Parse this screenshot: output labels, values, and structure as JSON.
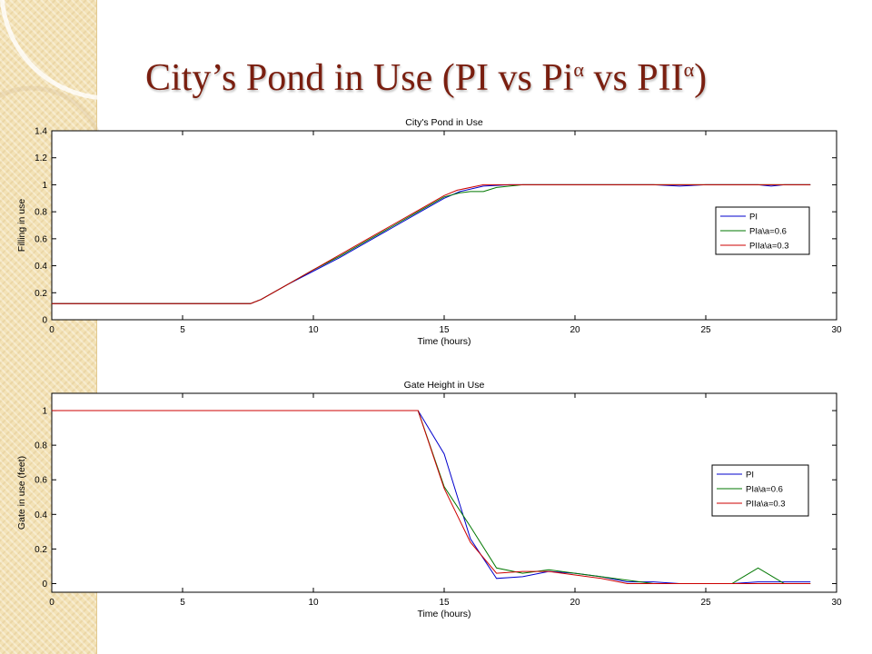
{
  "slide": {
    "title_main": "City’s Pond in Use (PI vs Pi",
    "title_sup1": "α",
    "title_mid": " vs PII",
    "title_sup2": "α",
    "title_end": ")"
  },
  "colors": {
    "title": "#7a1f10",
    "band": "#f3e2b6",
    "PI": "#0000cc",
    "PIa06": "#007700",
    "PIIa03": "#cc0000"
  },
  "chart_data": [
    {
      "type": "line",
      "title": "City's Pond in Use",
      "xlabel": "Time (hours)",
      "ylabel": "Filling in use",
      "xlim": [
        0,
        30
      ],
      "ylim": [
        0,
        1.4
      ],
      "xticks": [
        0,
        5,
        10,
        15,
        20,
        25,
        30
      ],
      "yticks": [
        0,
        0.2,
        0.4,
        0.6,
        0.8,
        1,
        1.2,
        1.4
      ],
      "ytick_labels": [
        "0",
        "0.2",
        "0.4",
        "0.6",
        "0.8",
        "1",
        "1.2",
        "1.4"
      ],
      "grid": false,
      "legend": "right",
      "series": [
        {
          "name": "PI",
          "color": "#0000cc",
          "x": [
            0,
            7.6,
            8,
            9,
            10,
            11,
            12,
            13,
            14,
            15,
            15.6,
            16.5,
            17.5,
            18,
            20,
            22,
            23,
            24,
            25,
            27,
            27.5,
            28,
            29
          ],
          "y": [
            0.12,
            0.12,
            0.15,
            0.26,
            0.36,
            0.46,
            0.57,
            0.68,
            0.79,
            0.9,
            0.95,
            0.99,
            1.0,
            1.0,
            1.0,
            1.0,
            1.0,
            0.99,
            1.0,
            1.0,
            0.99,
            1.0,
            1.0
          ]
        },
        {
          "name": "PIa\\a=0.6",
          "color": "#007700",
          "x": [
            0,
            7.6,
            8,
            9,
            10,
            11,
            12,
            13,
            14,
            15,
            15.6,
            16,
            16.5,
            17,
            18,
            20,
            22,
            24,
            26,
            29
          ],
          "y": [
            0.12,
            0.12,
            0.15,
            0.26,
            0.37,
            0.47,
            0.58,
            0.69,
            0.8,
            0.91,
            0.94,
            0.95,
            0.95,
            0.98,
            1.0,
            1.0,
            1.0,
            1.0,
            1.0,
            1.0
          ]
        },
        {
          "name": "PIIa\\a=0.3",
          "color": "#cc0000",
          "x": [
            0,
            7.6,
            8,
            9,
            10,
            11,
            12,
            13,
            14,
            15,
            15.5,
            16.5,
            17.5,
            18,
            20,
            22,
            24,
            26,
            29
          ],
          "y": [
            0.12,
            0.12,
            0.15,
            0.26,
            0.37,
            0.48,
            0.59,
            0.7,
            0.81,
            0.92,
            0.96,
            1.0,
            1.0,
            1.0,
            1.0,
            1.0,
            1.0,
            1.0,
            1.0
          ]
        }
      ]
    },
    {
      "type": "line",
      "title": "Gate Height in Use",
      "xlabel": "Time (hours)",
      "ylabel": "Gate in use (feet)",
      "xlim": [
        0,
        30
      ],
      "ylim": [
        -0.05,
        1.1
      ],
      "xticks": [
        0,
        5,
        10,
        15,
        20,
        25,
        30
      ],
      "yticks": [
        0,
        0.2,
        0.4,
        0.6,
        0.8,
        1
      ],
      "ytick_labels": [
        "0",
        "0.2",
        "0.4",
        "0.6",
        "0.8",
        "1"
      ],
      "grid": false,
      "legend": "right",
      "series": [
        {
          "name": "PI",
          "color": "#0000cc",
          "x": [
            0,
            14,
            15,
            16,
            17,
            18,
            19,
            20,
            21,
            22,
            23,
            24,
            25,
            26,
            27,
            28,
            29
          ],
          "y": [
            1,
            1,
            0.75,
            0.26,
            0.03,
            0.04,
            0.07,
            0.06,
            0.04,
            0.01,
            0.01,
            0,
            0,
            0,
            0.01,
            0.01,
            0.01
          ]
        },
        {
          "name": "PIa\\a=0.6",
          "color": "#007700",
          "x": [
            0,
            14,
            15,
            16,
            17,
            18,
            19,
            20,
            21,
            22,
            23,
            24,
            25,
            26,
            27,
            28,
            29
          ],
          "y": [
            1,
            1,
            0.56,
            0.33,
            0.09,
            0.06,
            0.08,
            0.06,
            0.04,
            0.02,
            0,
            0,
            0,
            0,
            0.09,
            0,
            0
          ]
        },
        {
          "name": "PIIa\\a=0.3",
          "color": "#cc0000",
          "x": [
            0,
            14,
            15,
            16,
            17,
            18,
            19,
            20,
            21,
            22,
            23,
            24,
            25,
            26,
            27,
            28,
            29
          ],
          "y": [
            1,
            1,
            0.55,
            0.24,
            0.06,
            0.07,
            0.07,
            0.05,
            0.03,
            0,
            0,
            0,
            0,
            0,
            0,
            0,
            0
          ]
        }
      ]
    }
  ]
}
